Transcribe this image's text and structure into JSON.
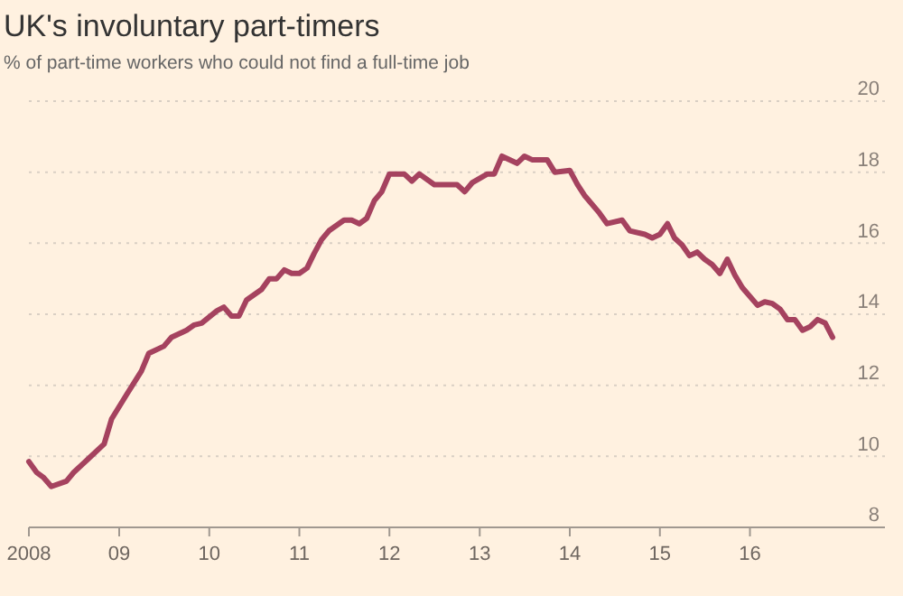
{
  "chart_data": {
    "type": "line",
    "title": "UK's involuntary part-timers",
    "subtitle": "% of part-time workers who could not find a full-time job",
    "x": [
      "2008-01",
      "2008-02",
      "2008-03",
      "2008-04",
      "2008-06",
      "2008-07",
      "2008-09",
      "2008-11",
      "2008-12",
      "2009-02",
      "2009-04",
      "2009-05",
      "2009-07",
      "2009-08",
      "2009-10",
      "2009-11",
      "2009-12",
      "2010-02",
      "2010-03",
      "2010-04",
      "2010-05",
      "2010-06",
      "2010-08",
      "2010-09",
      "2010-10",
      "2010-11",
      "2010-12",
      "2011-01",
      "2011-02",
      "2011-03",
      "2011-04",
      "2011-05",
      "2011-07",
      "2011-08",
      "2011-09",
      "2011-10",
      "2011-11",
      "2011-12",
      "2012-01",
      "2012-02",
      "2012-03",
      "2012-04",
      "2012-05",
      "2012-07",
      "2012-10",
      "2012-11",
      "2012-12",
      "2013-02",
      "2013-03",
      "2013-04",
      "2013-06",
      "2013-07",
      "2013-08",
      "2013-10",
      "2013-11",
      "2014-01",
      "2014-02",
      "2014-03",
      "2014-05",
      "2014-06",
      "2014-08",
      "2014-09",
      "2014-11",
      "2014-12",
      "2015-01",
      "2015-02",
      "2015-03",
      "2015-04",
      "2015-05",
      "2015-06",
      "2015-07",
      "2015-08",
      "2015-09",
      "2015-10",
      "2015-11",
      "2015-12",
      "2016-02",
      "2016-03",
      "2016-04",
      "2016-05",
      "2016-06",
      "2016-07",
      "2016-08",
      "2016-09",
      "2016-10",
      "2016-11",
      "2016-12"
    ],
    "series": [
      {
        "color": "#a5425f",
        "values": [
          9.85,
          9.55,
          9.4,
          9.15,
          9.3,
          9.55,
          9.95,
          10.35,
          11.05,
          11.75,
          12.4,
          12.9,
          13.1,
          13.35,
          13.55,
          13.7,
          13.75,
          14.1,
          14.2,
          13.95,
          13.95,
          14.4,
          14.7,
          15.0,
          15.0,
          15.25,
          15.15,
          15.15,
          15.3,
          15.7,
          16.1,
          16.35,
          16.65,
          16.65,
          16.55,
          16.7,
          17.2,
          17.45,
          17.95,
          17.95,
          17.95,
          17.75,
          17.95,
          17.65,
          17.65,
          17.45,
          17.7,
          17.95,
          17.95,
          18.45,
          18.25,
          18.45,
          18.35,
          18.35,
          18.0,
          18.05,
          17.65,
          17.35,
          16.85,
          16.55,
          16.65,
          16.35,
          16.25,
          16.15,
          16.25,
          16.55,
          16.15,
          15.95,
          15.65,
          15.75,
          15.55,
          15.4,
          15.15,
          15.55,
          15.1,
          14.75,
          14.25,
          14.35,
          14.3,
          14.15,
          13.85,
          13.85,
          13.55,
          13.65,
          13.85,
          13.75,
          13.35
        ]
      }
    ],
    "xlim": [
      "2008-01",
      "2017-07"
    ],
    "xticks": [
      {
        "value": "2008",
        "label": "2008"
      },
      {
        "value": "2009",
        "label": "09"
      },
      {
        "value": "2010",
        "label": "10"
      },
      {
        "value": "2011",
        "label": "11"
      },
      {
        "value": "2012",
        "label": "12"
      },
      {
        "value": "2013",
        "label": "13"
      },
      {
        "value": "2014",
        "label": "14"
      },
      {
        "value": "2015",
        "label": "15"
      },
      {
        "value": "2016",
        "label": "16"
      }
    ],
    "ylim": [
      8,
      20
    ],
    "yticks": [
      8,
      10,
      12,
      14,
      16,
      18,
      20
    ],
    "grid": "y",
    "marker": "none",
    "line_style": "solid"
  }
}
